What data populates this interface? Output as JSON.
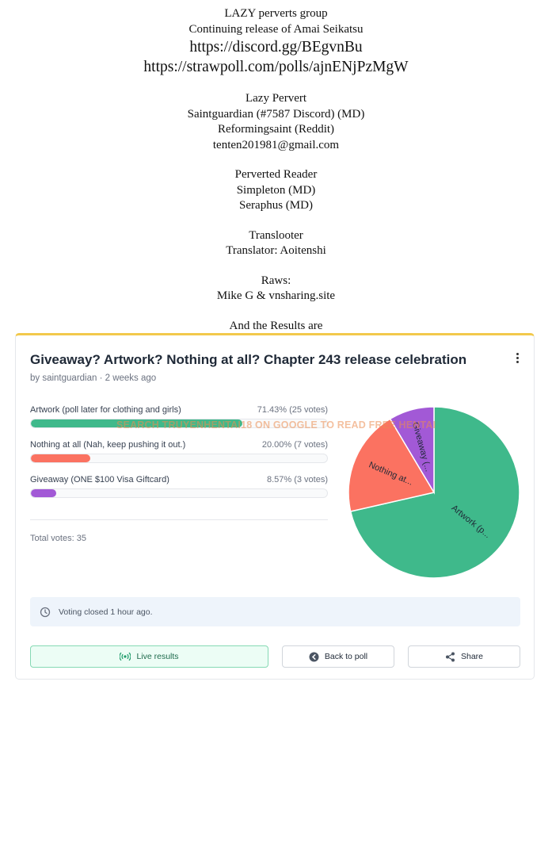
{
  "credits": {
    "group": "LAZY perverts group",
    "release": "Continuing release of Amai Seikatsu",
    "discord_url": "https://discord.gg/BEgvnBu",
    "strawpoll_url": "https://strawpoll.com/polls/ajnENjPzMgW",
    "lazy_title": "Lazy Pervert",
    "lazy_1": "Saintguardian (#7587 Discord) (MD)",
    "lazy_2": "Reformingsaint (Reddit)",
    "lazy_3": "tenten201981@gmail.com",
    "reader_title": "Perverted Reader",
    "reader_1": "Simpleton (MD)",
    "reader_2": "Seraphus (MD)",
    "looter_title": "Translooter",
    "looter_1": "Translator: Aoitenshi",
    "raws_title": "Raws:",
    "raws_1": "Mike G & vnsharing.site",
    "results": "And the Results are"
  },
  "poll": {
    "title": "Giveaway? Artwork? Nothing at all? Chapter 243 release celebration",
    "byline": "by saintguardian · 2 weeks ago",
    "options": [
      {
        "label": "Artwork (poll later for clothing and girls)",
        "stats": "71.43% (25 votes)",
        "pct": 71.43,
        "color": "#3fb98b",
        "pie_label": "Artwork (p..."
      },
      {
        "label": "Nothing at all (Nah, keep pushing it out.)",
        "stats": "20.00% (7 votes)",
        "pct": 20.0,
        "color": "#fb7261",
        "pie_label": "Nothing at..."
      },
      {
        "label": "Giveaway (ONE $100 Visa Giftcard)",
        "stats": "8.57% (3 votes)",
        "pct": 8.57,
        "color": "#a259d6",
        "pie_label": "Giveaway (..."
      }
    ],
    "total": "Total votes: 35",
    "watermark": "SEARCH TRUYENHENTAI18 ON GOOGLE TO READ FREE HENTAI",
    "notice": "Voting closed 1 hour ago.",
    "buttons": {
      "live": "Live results",
      "back": "Back to poll",
      "share": "Share"
    }
  }
}
